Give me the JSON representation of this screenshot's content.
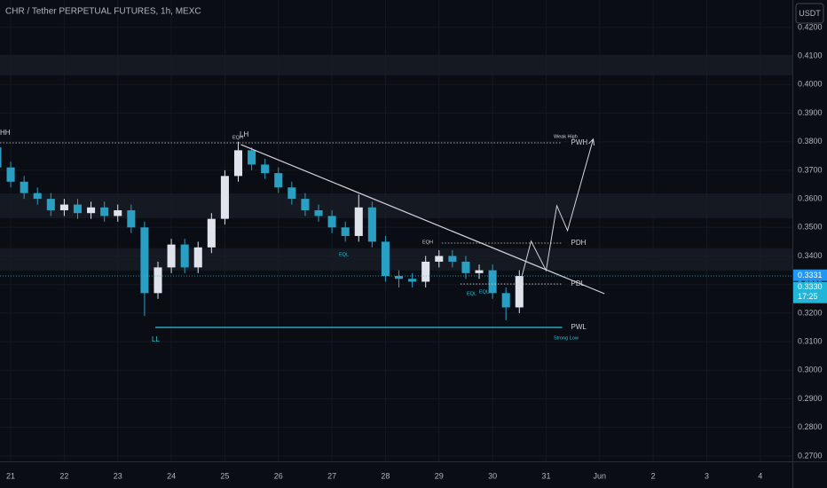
{
  "chart_data": {
    "type": "candlestick",
    "title": "CHR / Tether PERPETUAL FUTURES, 1h, MEXC",
    "currency_button": "USDT",
    "up_color": "#e0e3eb",
    "down_color": "#2a9fc4",
    "grid": true,
    "xlim": [
      20.8,
      35.6
    ],
    "xticks": [
      21,
      22,
      23,
      24,
      25,
      26,
      27,
      28,
      29,
      30,
      31,
      {
        "value": 32,
        "label": "Jun"
      },
      {
        "value": 33,
        "label": "2"
      },
      {
        "value": 34,
        "label": "3"
      },
      {
        "value": 35,
        "label": "4"
      }
    ],
    "ylim": [
      0.2681,
      0.4296
    ],
    "yticks": [
      {
        "value": 0.42,
        "label": "0.4200"
      },
      {
        "value": 0.41,
        "label": "0.4100"
      },
      {
        "value": 0.4,
        "label": "0.4000"
      },
      {
        "value": 0.39,
        "label": "0.3900"
      },
      {
        "value": 0.38,
        "label": "0.3800"
      },
      {
        "value": 0.37,
        "label": "0.3700"
      },
      {
        "value": 0.36,
        "label": "0.3600"
      },
      {
        "value": 0.35,
        "label": "0.3500"
      },
      {
        "value": 0.34,
        "label": "0.3400"
      },
      {
        "value": 0.33,
        "label": "0.3300"
      },
      {
        "value": 0.32,
        "label": "0.3200"
      },
      {
        "value": 0.31,
        "label": "0.3100"
      },
      {
        "value": 0.3,
        "label": "0.3000"
      },
      {
        "value": 0.29,
        "label": "0.2900"
      },
      {
        "value": 0.28,
        "label": "0.2800"
      },
      {
        "value": 0.27,
        "label": "0.2700"
      }
    ],
    "x": [
      20.75,
      21,
      21.25,
      21.5,
      21.75,
      22,
      22.25,
      22.5,
      22.75,
      23,
      23.25,
      23.5,
      23.75,
      24,
      24.25,
      24.5,
      24.75,
      25,
      25.25,
      25.5,
      25.75,
      26,
      26.25,
      26.5,
      26.75,
      27,
      27.25,
      27.5,
      27.75,
      28,
      28.25,
      28.5,
      28.75,
      29,
      29.25,
      29.5,
      29.75,
      30,
      30.25,
      30.5
    ],
    "open": [
      0.378,
      0.371,
      0.366,
      0.362,
      0.36,
      0.356,
      0.358,
      0.355,
      0.357,
      0.354,
      0.356,
      0.35,
      0.327,
      0.336,
      0.344,
      0.336,
      0.343,
      0.353,
      0.368,
      0.377,
      0.372,
      0.369,
      0.364,
      0.36,
      0.356,
      0.354,
      0.35,
      0.347,
      0.357,
      0.345,
      0.333,
      0.332,
      0.331,
      0.338,
      0.34,
      0.338,
      0.334,
      0.335,
      0.327,
      0.322
    ],
    "high": [
      0.383,
      0.373,
      0.368,
      0.364,
      0.362,
      0.36,
      0.36,
      0.359,
      0.359,
      0.358,
      0.358,
      0.352,
      0.338,
      0.346,
      0.346,
      0.345,
      0.355,
      0.37,
      0.38,
      0.378,
      0.374,
      0.371,
      0.366,
      0.362,
      0.358,
      0.356,
      0.352,
      0.3615,
      0.359,
      0.347,
      0.335,
      0.334,
      0.34,
      0.342,
      0.342,
      0.34,
      0.337,
      0.337,
      0.329,
      0.335
    ],
    "low": [
      0.369,
      0.364,
      0.36,
      0.358,
      0.354,
      0.354,
      0.353,
      0.353,
      0.352,
      0.352,
      0.348,
      0.319,
      0.325,
      0.334,
      0.334,
      0.334,
      0.341,
      0.351,
      0.366,
      0.37,
      0.367,
      0.362,
      0.358,
      0.354,
      0.352,
      0.348,
      0.345,
      0.345,
      0.343,
      0.331,
      0.329,
      0.329,
      0.329,
      0.336,
      0.336,
      0.332,
      0.332,
      0.325,
      0.3175,
      0.32
    ],
    "close": [
      0.371,
      0.366,
      0.362,
      0.36,
      0.356,
      0.358,
      0.355,
      0.357,
      0.354,
      0.356,
      0.35,
      0.327,
      0.336,
      0.344,
      0.336,
      0.343,
      0.353,
      0.368,
      0.377,
      0.372,
      0.369,
      0.364,
      0.36,
      0.356,
      0.354,
      0.35,
      0.347,
      0.357,
      0.345,
      0.333,
      0.332,
      0.331,
      0.338,
      0.34,
      0.338,
      0.334,
      0.335,
      0.327,
      0.322,
      0.333
    ],
    "zones": [
      {
        "low": 0.4032,
        "high": 0.4104
      },
      {
        "low": 0.3532,
        "high": 0.3619
      },
      {
        "low": 0.3349,
        "high": 0.3427
      }
    ],
    "levels": [
      {
        "label": "PWH",
        "price": 0.3796,
        "start": 20.8,
        "end": 31.3
      },
      {
        "label": "PDH",
        "price": 0.3445,
        "start": 29.05,
        "end": 31.3
      },
      {
        "label": "PDL",
        "price": 0.3302,
        "start": 29.4,
        "end": 31.3
      },
      {
        "label": "PWL",
        "price": 0.315,
        "start": 23.7,
        "end": 31.3
      }
    ],
    "trendline": {
      "x": [
        25.3,
        32.09
      ],
      "y": [
        0.379,
        0.3268
      ]
    },
    "projection": {
      "x": [
        30.52,
        30.72,
        31.0,
        31.2,
        31.4,
        31.88
      ],
      "y": [
        0.3309,
        0.3452,
        0.3349,
        0.3576,
        0.3489,
        0.3809
      ]
    },
    "annotations": [
      "HH",
      "EQH",
      "LH",
      "EQL",
      "EQH",
      "EQL",
      "EQL",
      "LL",
      "Weak High",
      "Strong Low"
    ],
    "last_price": {
      "value": 0.3331,
      "label": "0.3331"
    },
    "mark_price": {
      "value": 0.333,
      "label": "0.3330"
    },
    "countdown": "17:25"
  }
}
